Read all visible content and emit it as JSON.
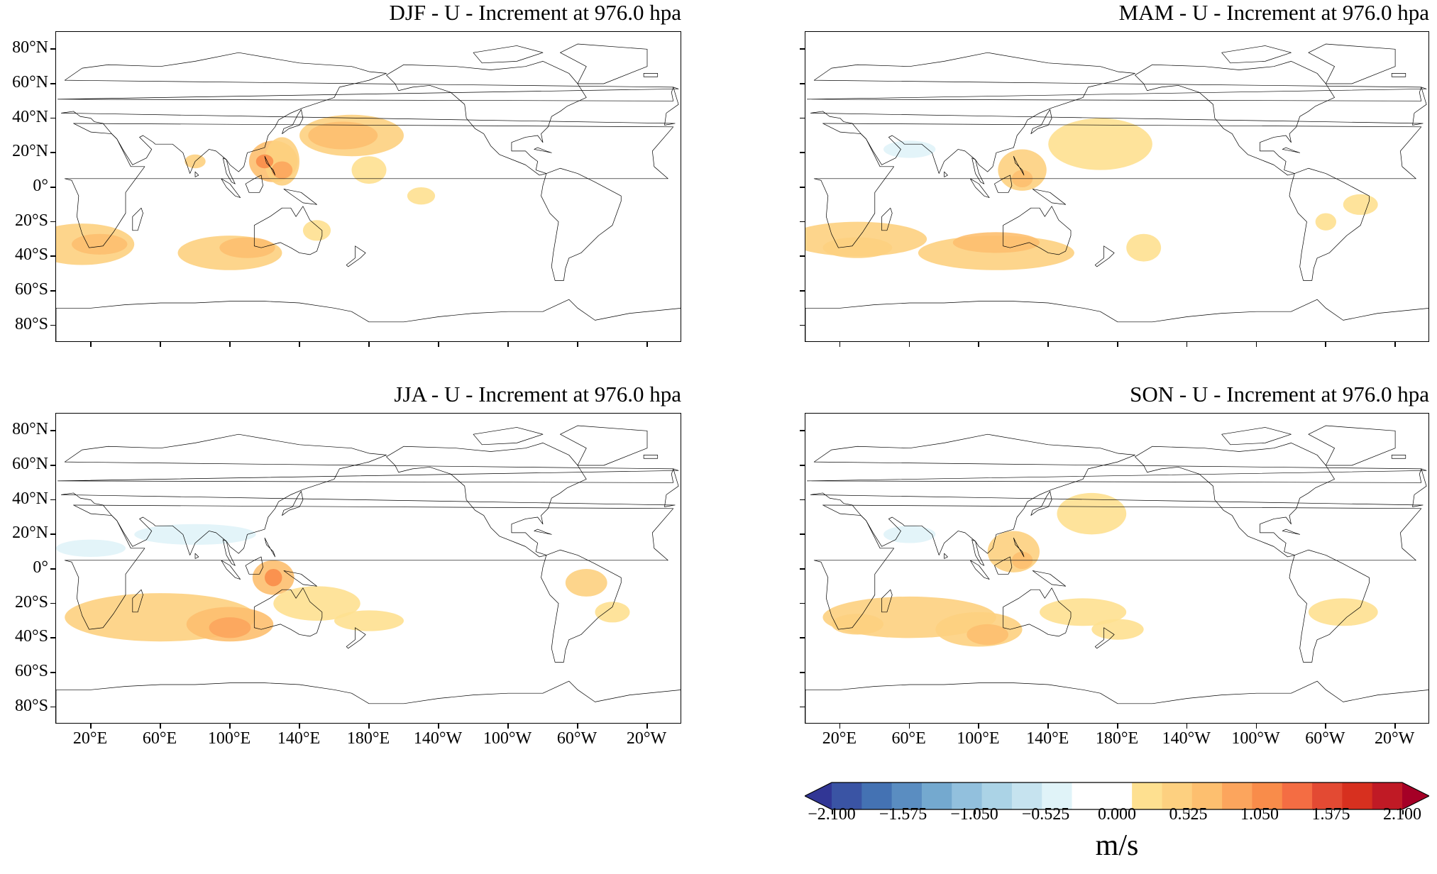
{
  "panels": [
    {
      "title": "DJF - U - Increment at 976.0 hpa",
      "season": "DJF"
    },
    {
      "title": "MAM - U - Increment at 976.0 hpa",
      "season": "MAM"
    },
    {
      "title": "JJA - U - Increment at 976.0 hpa",
      "season": "JJA"
    },
    {
      "title": "SON - U - Increment at 976.0 hpa",
      "season": "SON"
    }
  ],
  "lat_labels": [
    "80°N",
    "60°N",
    "40°N",
    "20°N",
    "0°",
    "20°S",
    "40°S",
    "60°S",
    "80°S"
  ],
  "lon_labels": [
    "20°E",
    "60°E",
    "100°E",
    "140°E",
    "180°E",
    "140°W",
    "100°W",
    "60°W",
    "20°W"
  ],
  "colorbar": {
    "tick_labels": [
      "−2.100",
      "−1.575",
      "−1.050",
      "−0.525",
      "0.000",
      "0.525",
      "1.050",
      "1.575",
      "2.100"
    ],
    "unit": "m/s",
    "levels": [
      -2.1,
      2.1
    ],
    "colors": [
      "#313695",
      "#3a54a4",
      "#4472b3",
      "#5a8dc1",
      "#74a9cf",
      "#92c0dd",
      "#abd3e6",
      "#c6e3ef",
      "#e0f3f8",
      "#ffffff",
      "#ffffff",
      "#fee090",
      "#fdd080",
      "#fdbf6f",
      "#fca55d",
      "#f98c4a",
      "#f46d43",
      "#e34a33",
      "#d7301f",
      "#c01a25",
      "#a50026"
    ]
  },
  "map": {
    "projection": "PlateCarree",
    "central_longitude": 180,
    "lat_range": [
      -90,
      90
    ],
    "field": "U increment at 976.0 hpa"
  }
}
